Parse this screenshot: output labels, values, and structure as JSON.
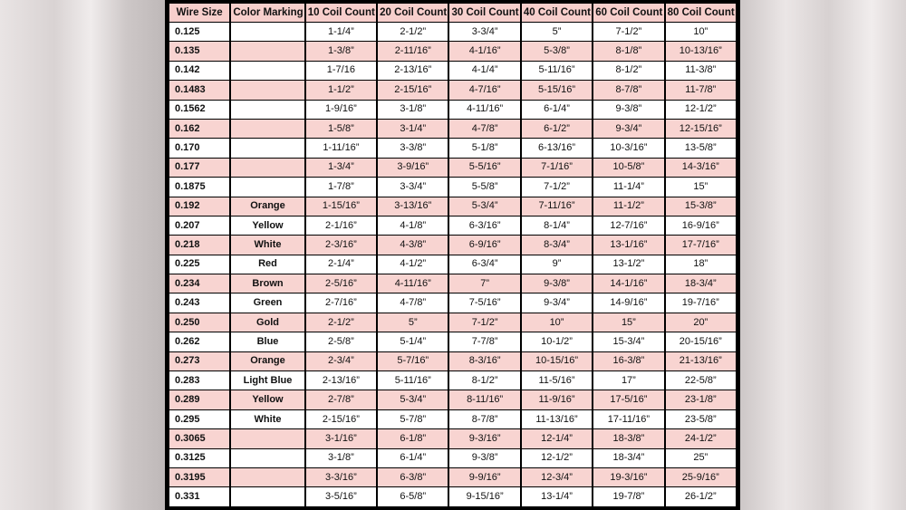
{
  "headers": [
    "Wire Size",
    "Color Marking",
    "10 Coil Count",
    "20 Coil Count",
    "30 Coil Count",
    "40 Coil Count",
    "60 Coil Count",
    "80 Coil Count"
  ],
  "rows": [
    [
      "0.125",
      "",
      "1-1/4”",
      "2-1/2”",
      "3-3/4”",
      "5”",
      "7-1/2”",
      "10”"
    ],
    [
      "0.135",
      "",
      "1-3/8”",
      "2-11/16”",
      "4-1/16”",
      "5-3/8”",
      "8-1/8”",
      "10-13/16”"
    ],
    [
      "0.142",
      "",
      "1-7/16",
      "2-13/16”",
      "4-1/4”",
      "5-11/16”",
      "8-1/2”",
      "11-3/8”"
    ],
    [
      "0.1483",
      "",
      "1-1/2”",
      "2-15/16”",
      "4-7/16”",
      "5-15/16”",
      "8-7/8”",
      "11-7/8”"
    ],
    [
      "0.1562",
      "",
      "1-9/16”",
      "3-1/8”",
      "4-11/16”",
      "6-1/4”",
      "9-3/8”",
      "12-1/2”"
    ],
    [
      "0.162",
      "",
      "1-5/8”",
      "3-1/4”",
      "4-7/8”",
      "6-1/2”",
      "9-3/4”",
      "12-15/16”"
    ],
    [
      "0.170",
      "",
      "1-11/16”",
      "3-3/8”",
      "5-1/8”",
      "6-13/16”",
      "10-3/16”",
      "13-5/8”"
    ],
    [
      "0.177",
      "",
      "1-3/4”",
      "3-9/16”",
      "5-5/16”",
      "7-1/16”",
      "10-5/8”",
      "14-3/16”"
    ],
    [
      "0.1875",
      "",
      "1-7/8”",
      "3-3/4”",
      "5-5/8”",
      "7-1/2”",
      "11-1/4”",
      "15”"
    ],
    [
      "0.192",
      "Orange",
      "1-15/16”",
      "3-13/16”",
      "5-3/4”",
      "7-11/16”",
      "11-1/2”",
      "15-3/8”"
    ],
    [
      "0.207",
      "Yellow",
      "2-1/16”",
      "4-1/8”",
      "6-3/16”",
      "8-1/4”",
      "12-7/16”",
      "16-9/16”"
    ],
    [
      "0.218",
      "White",
      "2-3/16”",
      "4-3/8”",
      "6-9/16”",
      "8-3/4”",
      "13-1/16”",
      "17-7/16”"
    ],
    [
      "0.225",
      "Red",
      "2-1/4”",
      "4-1/2”",
      "6-3/4”",
      "9”",
      "13-1/2”",
      "18”"
    ],
    [
      "0.234",
      "Brown",
      "2-5/16”",
      "4-11/16”",
      "7”",
      "9-3/8”",
      "14-1/16”",
      "18-3/4”"
    ],
    [
      "0.243",
      "Green",
      "2-7/16”",
      "4-7/8”",
      "7-5/16”",
      "9-3/4”",
      "14-9/16”",
      "19-7/16”"
    ],
    [
      "0.250",
      "Gold",
      "2-1/2”",
      "5”",
      "7-1/2”",
      "10”",
      "15”",
      "20”"
    ],
    [
      "0.262",
      "Blue",
      "2-5/8”",
      "5-1/4”",
      "7-7/8”",
      "10-1/2”",
      "15-3/4”",
      "20-15/16”"
    ],
    [
      "0.273",
      "Orange",
      "2-3/4”",
      "5-7/16”",
      "8-3/16”",
      "10-15/16”",
      "16-3/8”",
      "21-13/16”"
    ],
    [
      "0.283",
      "Light Blue",
      "2-13/16”",
      "5-11/16”",
      "8-1/2”",
      "11-5/16”",
      "17”",
      "22-5/8”"
    ],
    [
      "0.289",
      "Yellow",
      "2-7/8”",
      "5-3/4”",
      "8-11/16”",
      "11-9/16”",
      "17-5/16”",
      "23-1/8”"
    ],
    [
      "0.295",
      "White",
      "2-15/16”",
      "5-7/8”",
      "8-7/8”",
      "11-13/16”",
      "17-11/16”",
      "23-5/8”"
    ],
    [
      "0.3065",
      "",
      "3-1/16”",
      "6-1/8”",
      "9-3/16”",
      "12-1/4”",
      "18-3/8”",
      "24-1/2”"
    ],
    [
      "0.3125",
      "",
      "3-1/8”",
      "6-1/4”",
      "9-3/8”",
      "12-1/2”",
      "18-3/4”",
      "25”"
    ],
    [
      "0.3195",
      "",
      "3-3/16”",
      "6-3/8”",
      "9-9/16”",
      "12-3/4”",
      "19-3/16”",
      "25-9/16”"
    ],
    [
      "0.331",
      "",
      "3-5/16”",
      "6-5/8”",
      "9-15/16”",
      "13-1/4”",
      "19-7/8”",
      "26-1/2”"
    ]
  ]
}
